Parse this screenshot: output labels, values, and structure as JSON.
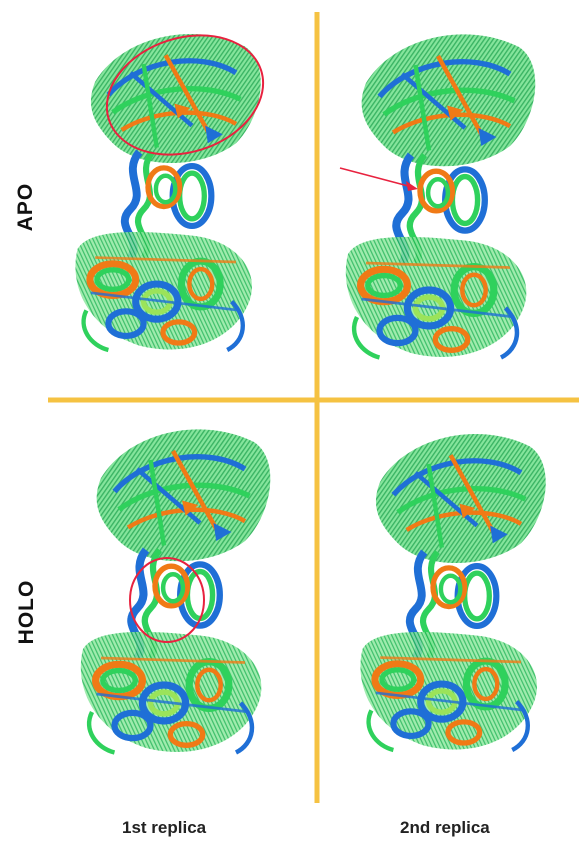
{
  "rows": [
    {
      "label": "APO"
    },
    {
      "label": "HOLO"
    }
  ],
  "columns": [
    {
      "label": "1st replica"
    },
    {
      "label": "2nd replica"
    }
  ],
  "colors": {
    "divider": "#f5c242",
    "highlight": "#e8223f",
    "ribbon_blue": "#1f6fd6",
    "ribbon_green": "#2fd15c",
    "ribbon_orange": "#f07a16",
    "ribbon_lime": "#9be35a"
  },
  "panels": [
    {
      "id": "apo-rep1",
      "annotation": "circle"
    },
    {
      "id": "apo-rep2",
      "annotation": "arrow"
    },
    {
      "id": "holo-rep1",
      "annotation": "circle"
    },
    {
      "id": "holo-rep2",
      "annotation": "none"
    }
  ]
}
